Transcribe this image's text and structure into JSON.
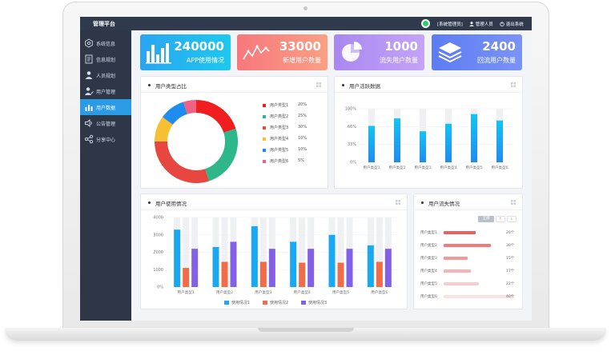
{
  "topbar": {
    "title": "管理平台",
    "role": "[系统管理员]",
    "user": "管理人员",
    "logout": "退出系统"
  },
  "sidebar": {
    "items": [
      {
        "label": "系统信息",
        "icon": "settings-icon"
      },
      {
        "label": "信息规划",
        "icon": "document-icon"
      },
      {
        "label": "人员规划",
        "icon": "person-icon"
      },
      {
        "label": "用户管理",
        "icon": "user-edit-icon"
      },
      {
        "label": "用户数据",
        "icon": "bar-chart-icon",
        "active": true
      },
      {
        "label": "公告管理",
        "icon": "speaker-icon"
      },
      {
        "label": "分享中心",
        "icon": "share-icon"
      }
    ]
  },
  "stats": [
    {
      "value": "240000",
      "label": "APP使用情况",
      "icon": "bar-chart-icon",
      "colors": [
        "#2aa5f3",
        "#1ec8ee"
      ]
    },
    {
      "value": "33000",
      "label": "新增用户数量",
      "icon": "line-chart-icon",
      "colors": [
        "#f6787c",
        "#fba085"
      ]
    },
    {
      "value": "1000",
      "label": "流失用户数量",
      "icon": "pie-chart-icon",
      "colors": [
        "#a988f0",
        "#c3a4f7"
      ]
    },
    {
      "value": "2400",
      "label": "回流用户数量",
      "icon": "layers-icon",
      "colors": [
        "#5c7cf2",
        "#7a93f6"
      ]
    }
  ],
  "panels": {
    "type_ratio": {
      "title": "用户类型占比"
    },
    "activity": {
      "title": "用户活跃数据"
    },
    "usage": {
      "title": "用户使用情况"
    },
    "churn": {
      "title": "用户流失情况",
      "buttons": [
        "全部",
        "↑",
        "↓"
      ]
    }
  },
  "chart_data": [
    {
      "type": "pie",
      "title": "用户类型占比",
      "labels": [
        "用户类型1",
        "用户类型2",
        "用户类型3",
        "用户类型4",
        "用户类型5",
        "用户类型6"
      ],
      "values": [
        20,
        25,
        30,
        10,
        10,
        5
      ],
      "value_labels": [
        "20%",
        "25%",
        "30%",
        "10%",
        "10%",
        "5%"
      ],
      "colors": [
        "#f01e1e",
        "#2db78a",
        "#e8473f",
        "#f5c133",
        "#1e8cf0",
        "#f06283"
      ],
      "donut": true,
      "legend": "right"
    },
    {
      "type": "bar",
      "title": "用户活跃数据",
      "categories": [
        "用户类型1",
        "用户类型2",
        "用户类型3",
        "用户类型4",
        "用户类型5",
        "用户类型6"
      ],
      "values": [
        68,
        82,
        58,
        72,
        90,
        78
      ],
      "yticks": [
        "0%",
        "33%",
        "66%",
        "100%"
      ],
      "ylim": [
        0,
        100
      ],
      "background_bars": true,
      "colors": [
        "#14c4f0",
        "#1e8cf0"
      ]
    },
    {
      "type": "bar",
      "title": "用户使用情况",
      "categories": [
        "用户类型1",
        "用户类型2",
        "用户类型3",
        "用户类型4",
        "用户类型5",
        "用户类型6"
      ],
      "series": [
        {
          "name": "使用情况1",
          "values": [
            3300,
            2300,
            3500,
            2600,
            3000,
            2400
          ],
          "color": "#19a9f0"
        },
        {
          "name": "使用情况2",
          "values": [
            1100,
            1450,
            1450,
            1400,
            1400,
            1450
          ],
          "color": "#f36c4a"
        },
        {
          "name": "使用情况3",
          "values": [
            2200,
            2600,
            2200,
            2200,
            2200,
            2200
          ],
          "color": "#8360e6"
        }
      ],
      "yticks": [
        "0%",
        "1000",
        "2000",
        "3000",
        "4000"
      ],
      "ylim": [
        0,
        4000
      ],
      "background_bars": true,
      "legend": "bottom"
    },
    {
      "type": "bar",
      "orientation": "horizontal",
      "title": "用户流失情况",
      "categories": [
        "用户类型1",
        "用户类型2",
        "用户类型3",
        "用户类型4",
        "用户类型5",
        "用户类型6"
      ],
      "values": [
        20,
        30,
        15,
        17,
        22,
        40
      ],
      "value_labels": [
        "20个",
        "30个",
        "15个",
        "17个",
        "22个",
        "40个"
      ],
      "colors": [
        "#e96060",
        "#ee7c7c",
        "#f29999",
        "#f6b4b4",
        "#f9cdcd",
        "#fbe1e1"
      ]
    }
  ]
}
